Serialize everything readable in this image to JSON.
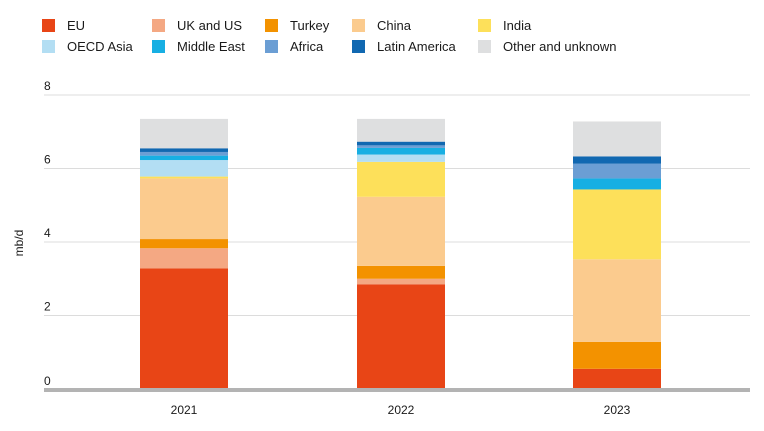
{
  "chart_data": {
    "type": "bar",
    "stacked": true,
    "title": "",
    "xlabel": "",
    "ylabel": "mb/d",
    "ylim": [
      0,
      8
    ],
    "yticks": [
      0,
      2,
      4,
      6,
      8
    ],
    "grid": true,
    "legend_position": "top",
    "categories": [
      "2021",
      "2022",
      "2023"
    ],
    "series": [
      {
        "name": "EU",
        "color": "#e84516",
        "values": [
          3.28,
          2.85,
          0.55
        ]
      },
      {
        "name": "UK and US",
        "color": "#f4a883",
        "values": [
          0.55,
          0.15,
          0.0
        ]
      },
      {
        "name": "Turkey",
        "color": "#f39200",
        "values": [
          0.25,
          0.35,
          0.73
        ]
      },
      {
        "name": "China",
        "color": "#fbcb8e",
        "values": [
          1.65,
          1.88,
          2.25
        ]
      },
      {
        "name": "India",
        "color": "#fde05a",
        "values": [
          0.05,
          0.95,
          1.9
        ]
      },
      {
        "name": "OECD Asia",
        "color": "#b3def3",
        "values": [
          0.45,
          0.2,
          0.0
        ]
      },
      {
        "name": "Middle East",
        "color": "#17afe3",
        "values": [
          0.12,
          0.18,
          0.3
        ]
      },
      {
        "name": "Africa",
        "color": "#6b9ed4",
        "values": [
          0.1,
          0.07,
          0.4
        ]
      },
      {
        "name": "Latin America",
        "color": "#1168b1",
        "values": [
          0.1,
          0.1,
          0.2
        ]
      },
      {
        "name": "Other and unknown",
        "color": "#dedfe0",
        "values": [
          0.8,
          0.62,
          0.95
        ]
      }
    ]
  }
}
